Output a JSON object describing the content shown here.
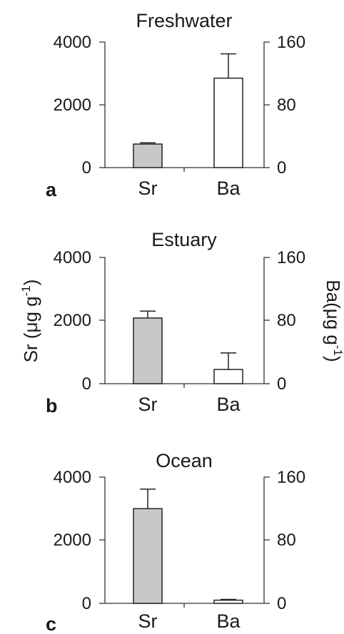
{
  "chart_data": [
    {
      "type": "bar",
      "panel_label": "a",
      "title": "Freshwater",
      "categories": [
        "Sr",
        "Ba"
      ],
      "series": [
        {
          "axis": "left",
          "category": "Sr",
          "value": 750,
          "error": 40,
          "color": "#c8c8c8"
        },
        {
          "axis": "right",
          "category": "Ba",
          "value": 114,
          "error": 31,
          "color": "#ffffff"
        }
      ],
      "ylim_left": [
        0,
        4000
      ],
      "ylim_right": [
        0,
        160
      ],
      "left_ticks": [
        "0",
        "2000",
        "4000"
      ],
      "right_ticks": [
        "0",
        "80",
        "160"
      ]
    },
    {
      "type": "bar",
      "panel_label": "b",
      "title": "Estuary",
      "categories": [
        "Sr",
        "Ba"
      ],
      "series": [
        {
          "axis": "left",
          "category": "Sr",
          "value": 2080,
          "error": 220,
          "color": "#c8c8c8"
        },
        {
          "axis": "right",
          "category": "Ba",
          "value": 18,
          "error": 21,
          "color": "#ffffff"
        }
      ],
      "ylim_left": [
        0,
        4000
      ],
      "ylim_right": [
        0,
        160
      ],
      "left_ticks": [
        "0",
        "2000",
        "4000"
      ],
      "right_ticks": [
        "0",
        "80",
        "160"
      ],
      "ylabel_left": "Sr (μg g",
      "ylabel_left_sup": "-1",
      "ylabel_left_close": ")",
      "ylabel_right": "Ba(μg g",
      "ylabel_right_sup": "-1",
      "ylabel_right_close": ")"
    },
    {
      "type": "bar",
      "panel_label": "c",
      "title": "Ocean",
      "categories": [
        "Sr",
        "Ba"
      ],
      "series": [
        {
          "axis": "left",
          "category": "Sr",
          "value": 3000,
          "error": 620,
          "color": "#c8c8c8"
        },
        {
          "axis": "right",
          "category": "Ba",
          "value": 4,
          "error": 1,
          "color": "#ffffff"
        }
      ],
      "ylim_left": [
        0,
        4000
      ],
      "ylim_right": [
        0,
        160
      ],
      "left_ticks": [
        "0",
        "2000",
        "4000"
      ],
      "right_ticks": [
        "0",
        "80",
        "160"
      ]
    }
  ]
}
